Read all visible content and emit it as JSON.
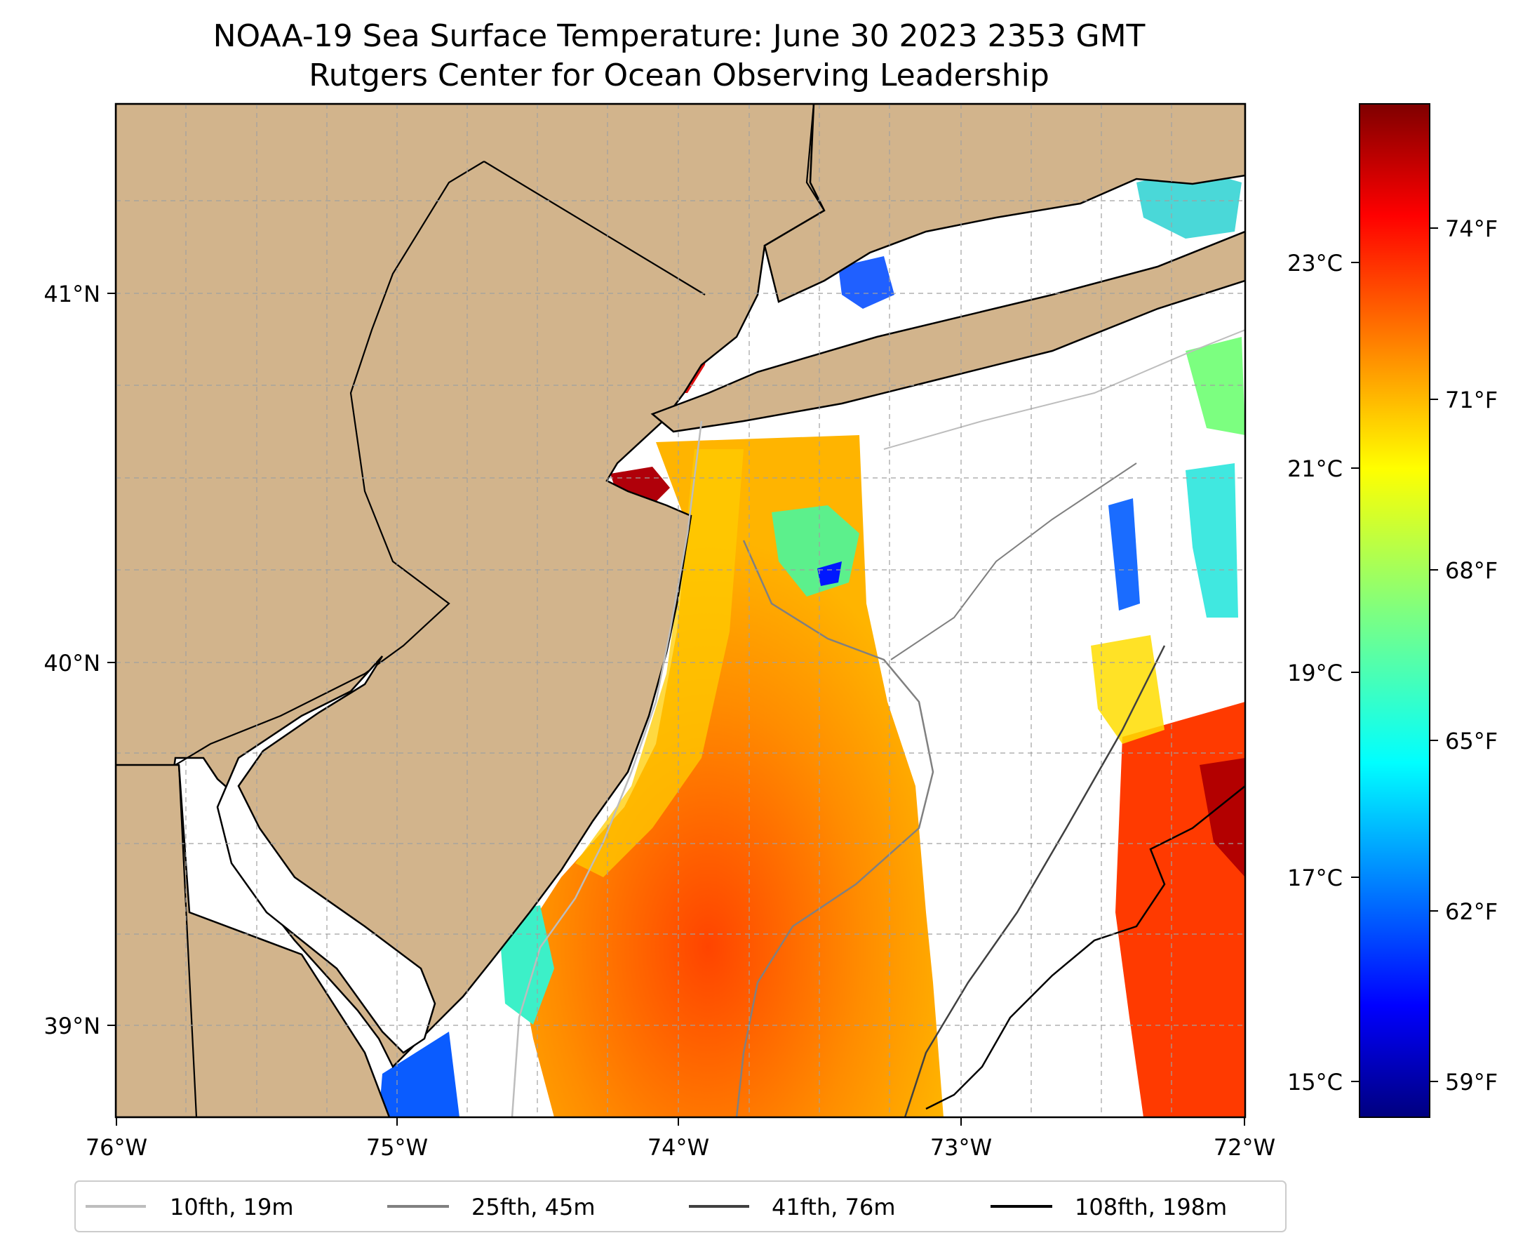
{
  "title": {
    "line1": "NOAA-19 Sea Surface Temperature: June 30 2023 2353 GMT",
    "line2": "Rutgers Center for Ocean Observing Leadership"
  },
  "axes": {
    "x_ticks": [
      {
        "value": -76,
        "label": "76°W"
      },
      {
        "value": -75,
        "label": "75°W"
      },
      {
        "value": -74,
        "label": "74°W"
      },
      {
        "value": -73,
        "label": "73°W"
      },
      {
        "value": -72,
        "label": "72°W"
      }
    ],
    "y_ticks": [
      {
        "value": 41,
        "label": "41°N"
      },
      {
        "value": 40,
        "label": "40°N"
      },
      {
        "value": 39,
        "label": "39°N"
      }
    ],
    "lon_range": [
      -76,
      -72
    ],
    "lat_range": [
      38.75,
      41.52
    ]
  },
  "colorbar": {
    "celsius_ticks": [
      {
        "value": 23,
        "label": "23°C"
      },
      {
        "value": 21,
        "label": "21°C"
      },
      {
        "value": 19,
        "label": "19°C"
      },
      {
        "value": 17,
        "label": "17°C"
      },
      {
        "value": 15,
        "label": "15°C"
      }
    ],
    "fahrenheit_ticks": [
      {
        "value": 74,
        "label": "74°F"
      },
      {
        "value": 71,
        "label": "71°F"
      },
      {
        "value": 68,
        "label": "68°F"
      },
      {
        "value": 65,
        "label": "65°F"
      },
      {
        "value": 62,
        "label": "62°F"
      },
      {
        "value": 59,
        "label": "59°F"
      }
    ],
    "range_celsius": [
      14.7,
      24.6
    ],
    "colormap": "jet"
  },
  "legend": {
    "entries": [
      {
        "label": "10fth, 19m",
        "color": "#bdbdbd"
      },
      {
        "label": "25fth, 45m",
        "color": "#808080"
      },
      {
        "label": "41fth, 76m",
        "color": "#404040"
      },
      {
        "label": "108fth, 198m",
        "color": "#000000"
      }
    ]
  },
  "colors": {
    "land": "#d2b48c",
    "ocean_nodata": "#ffffff",
    "grid": "#a0a0a0"
  }
}
